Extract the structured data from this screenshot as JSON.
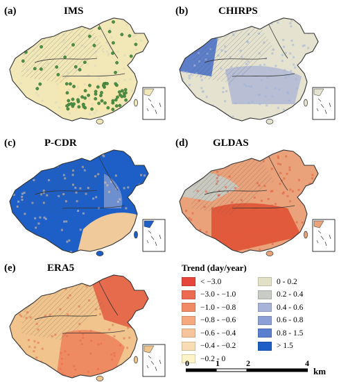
{
  "panels": [
    {
      "label": "(a)",
      "title": "IMS",
      "base": "#f1e7b7",
      "accent": "#d9d6bf",
      "dots": true,
      "scheme": "ims"
    },
    {
      "label": "(b)",
      "title": "CHIRPS",
      "base": "#e5e2cf",
      "accent": "#9fb0d8",
      "dots": false,
      "scheme": "chirps"
    },
    {
      "label": "(c)",
      "title": "P-CDR",
      "base": "#1d5fc6",
      "accent": "#f0ca9a",
      "dots": false,
      "scheme": "pcdr"
    },
    {
      "label": "(d)",
      "title": "GLDAS",
      "base": "#eaa27a",
      "accent": "#e25a3c",
      "dots": false,
      "scheme": "gldas"
    },
    {
      "label": "(e)",
      "title": "ERA5",
      "base": "#f0c48c",
      "accent": "#e66b4d",
      "dots": false,
      "scheme": "era5"
    }
  ],
  "legend": {
    "title": "Trend (day/year)",
    "left": [
      {
        "label": "< −3.0",
        "color": "#e4463c"
      },
      {
        "label": "−3.0 - −1.0",
        "color": "#ec6a50"
      },
      {
        "label": "−1.0 - −0.8",
        "color": "#f08b65"
      },
      {
        "label": "−0.8 - −0.6",
        "color": "#f4a97f"
      },
      {
        "label": "−0.6 - −0.4",
        "color": "#f6c49b"
      },
      {
        "label": "−0.4 - −0.2",
        "color": "#f8dcb3"
      },
      {
        "label": "−0.2 - 0",
        "color": "#fcf3c6"
      }
    ],
    "right": [
      {
        "label": "0 - 0.2",
        "color": "#e2e0c7"
      },
      {
        "label": "0.2 - 0.4",
        "color": "#c8ccc4"
      },
      {
        "label": "0.4 - 0.6",
        "color": "#a7b4d7"
      },
      {
        "label": "0.6 - 0.8",
        "color": "#8c9fd6"
      },
      {
        "label": "0.8 - 1.5",
        "color": "#5b7fcf"
      },
      {
        "label": "> 1.5",
        "color": "#1d5fc6"
      }
    ]
  },
  "scale": {
    "ticks": [
      "0",
      "1",
      "2",
      "4"
    ],
    "unit": "km"
  },
  "colors": {
    "dots": "#4e8f45",
    "border": "#333333"
  }
}
